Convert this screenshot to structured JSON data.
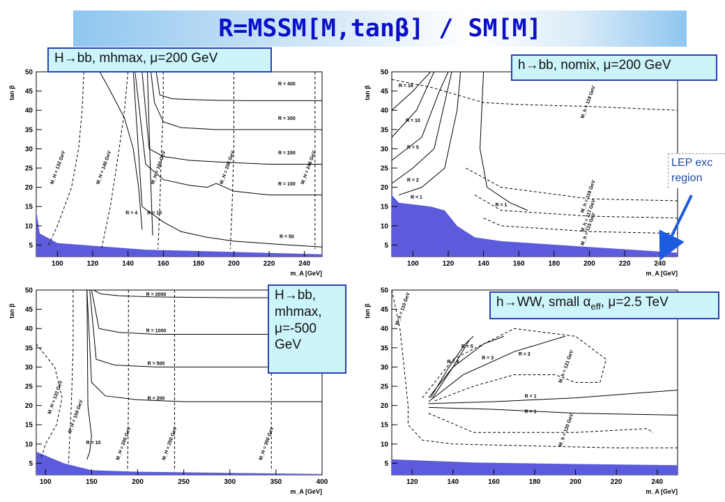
{
  "title": "R=MSSM[M,tanβ] / SM[M]",
  "lep_note": {
    "line1": "LEP exc",
    "line2": "region"
  },
  "chart_data": [
    {
      "type": "line",
      "label": "H→bb, mhmax, μ=200 GeV",
      "xlabel": "m_A [GeV]",
      "ylabel": "tan β",
      "xlim": [
        88,
        250
      ],
      "ylim": [
        2,
        50
      ],
      "xticks": [
        100,
        120,
        140,
        160,
        180,
        200,
        220,
        240
      ],
      "yticks": [
        5,
        10,
        15,
        20,
        25,
        30,
        35,
        40,
        45,
        50
      ],
      "excluded_region": [
        [
          88,
          14
        ],
        [
          90,
          8
        ],
        [
          100,
          5.5
        ],
        [
          150,
          3.8
        ],
        [
          200,
          3.2
        ],
        [
          250,
          2.6
        ],
        [
          250,
          2
        ],
        [
          88,
          2
        ]
      ],
      "solid_contours": [
        {
          "label": "R = 400",
          "x": [
            156,
            158,
            165,
            175,
            190,
            210,
            250
          ],
          "y": [
            50,
            44,
            43,
            42.8,
            42.6,
            42.5,
            42.5
          ],
          "lx": 230,
          "ly": 46.5
        },
        {
          "label": "R = 300",
          "x": [
            153,
            155,
            160,
            170,
            190,
            210,
            250
          ],
          "y": [
            50,
            42,
            37,
            35.5,
            35,
            35,
            35
          ],
          "lx": 230,
          "ly": 37.5
        },
        {
          "label": "R = 200",
          "x": [
            148,
            152,
            160,
            175,
            195,
            220,
            250
          ],
          "y": [
            50,
            30,
            28,
            27,
            26.5,
            26,
            26
          ],
          "lx": 230,
          "ly": 28.5
        },
        {
          "label": "R = 100",
          "x": [
            144,
            150,
            160,
            175,
            185,
            190,
            200,
            220,
            250
          ],
          "y": [
            50,
            26,
            22,
            20.5,
            20,
            21,
            19,
            18,
            18
          ],
          "lx": 230,
          "ly": 20.5
        },
        {
          "label": "R = 50",
          "x": [
            143,
            148,
            160,
            170,
            185,
            200,
            225,
            250
          ],
          "y": [
            50,
            15,
            11,
            8.5,
            7,
            6,
            5.2,
            4.5
          ],
          "lx": 230,
          "ly": 6.8
        },
        {
          "label": "R = 10",
          "x": [
            151,
            152,
            153,
            154
          ],
          "y": [
            50,
            35,
            20,
            7.5
          ],
          "lx": 155,
          "ly": 13
        },
        {
          "label": "R = 4",
          "x": [
            124,
            130,
            138,
            143,
            146,
            148
          ],
          "y": [
            50,
            45,
            38,
            30,
            20,
            9
          ],
          "lx": 142,
          "ly": 13
        }
      ],
      "dashed_contours": [
        {
          "label": "M_H = 132 GeV",
          "x": [
            115,
            114,
            112,
            108,
            100,
            95
          ],
          "y": [
            50,
            40,
            30,
            20,
            10,
            5
          ],
          "lx": 101,
          "ly": 25
        },
        {
          "label": "M_H = 140 GeV",
          "x": [
            140,
            138,
            135,
            130,
            125
          ],
          "y": [
            50,
            40,
            30,
            15,
            4
          ],
          "lx": 127,
          "ly": 25
        },
        {
          "label": "M_H = 160 GeV",
          "x": [
            160,
            160,
            159,
            158,
            157
          ],
          "y": [
            50,
            40,
            30,
            15,
            4
          ],
          "lx": 158,
          "ly": 25
        },
        {
          "label": "M_H = 200 GeV",
          "x": [
            200,
            200,
            200,
            199,
            198
          ],
          "y": [
            50,
            40,
            30,
            15,
            4
          ],
          "lx": 197,
          "ly": 25
        },
        {
          "label": "M_H = 246 GeV",
          "x": [
            246,
            246,
            246,
            246
          ],
          "y": [
            50,
            40,
            20,
            4
          ],
          "lx": 243,
          "ly": 25
        }
      ]
    },
    {
      "type": "line",
      "label": "h→bb, nomix, μ=200 GeV",
      "xlabel": "m_A [GeV]",
      "ylabel": "tan β",
      "xlim": [
        88,
        250
      ],
      "ylim": [
        2,
        50
      ],
      "xticks": [
        100,
        120,
        140,
        160,
        180,
        200,
        220,
        240
      ],
      "yticks": [
        5,
        10,
        15,
        20,
        25,
        30,
        35,
        40,
        45,
        50
      ],
      "excluded_region": [
        [
          88,
          18
        ],
        [
          92,
          16
        ],
        [
          110,
          15
        ],
        [
          118,
          14
        ],
        [
          125,
          10
        ],
        [
          135,
          7
        ],
        [
          150,
          6
        ],
        [
          200,
          4.5
        ],
        [
          250,
          3
        ],
        [
          250,
          2
        ],
        [
          88,
          2
        ]
      ],
      "solid_contours": [
        {
          "label": "R = 16",
          "x": [
            88,
            100,
            110,
            115
          ],
          "y": [
            40,
            45,
            50,
            50
          ],
          "lx": 96,
          "ly": 46
        },
        {
          "label": "R = 10",
          "x": [
            88,
            102,
            112,
            118
          ],
          "y": [
            33,
            40,
            50,
            50
          ],
          "lx": 100,
          "ly": 37
        },
        {
          "label": "R = 5",
          "x": [
            88,
            105,
            115,
            120
          ],
          "y": [
            27,
            33,
            45,
            50
          ],
          "lx": 100,
          "ly": 30
        },
        {
          "label": "R = 2",
          "x": [
            88,
            100,
            112,
            122
          ],
          "y": [
            21,
            25,
            30,
            50
          ],
          "lx": 100,
          "ly": 21.5
        },
        {
          "label": "R = 1",
          "x": [
            92,
            105,
            118,
            125,
            127
          ],
          "y": [
            18,
            20,
            25,
            40,
            50
          ],
          "lx": 102,
          "ly": 17
        },
        {
          "label": "R = 1",
          "x": [
            140,
            138,
            142,
            155,
            165
          ],
          "y": [
            50,
            30,
            20,
            16,
            14
          ],
          "lx": 150,
          "ly": 15
        }
      ],
      "dashed_contours": [
        {
          "label": "M_h = 119 GeV",
          "x": [
            88,
            110,
            125,
            140,
            160,
            200,
            225,
            250
          ],
          "y": [
            48,
            46,
            44,
            42,
            41.5,
            41,
            40.5,
            40
          ],
          "lx": 200,
          "ly": 42
        },
        {
          "label": "M_h = 118 GeV",
          "x": [
            130,
            150,
            200,
            250
          ],
          "y": [
            25,
            20,
            17,
            16.5
          ],
          "lx": 200,
          "ly": 17.5
        },
        {
          "label": "M_h = 117 GeV",
          "x": [
            135,
            150,
            200,
            250
          ],
          "y": [
            18,
            14,
            12.5,
            12
          ],
          "lx": 200,
          "ly": 12.5
        },
        {
          "label": "M_h = 115 GeV",
          "x": [
            140,
            150,
            200,
            250
          ],
          "y": [
            12,
            10,
            8.5,
            8
          ],
          "lx": 200,
          "ly": 9
        }
      ]
    },
    {
      "type": "line",
      "label": "H→bb, mhmax, μ=-500 GeV",
      "xlabel": "m_A [GeV]",
      "ylabel": "tan β",
      "xlim": [
        90,
        400
      ],
      "ylim": [
        2,
        50
      ],
      "xticks": [
        100,
        150,
        200,
        250,
        300,
        350,
        400
      ],
      "yticks": [
        5,
        10,
        15,
        20,
        25,
        30,
        35,
        40,
        45,
        50
      ],
      "excluded_region": [
        [
          90,
          8
        ],
        [
          120,
          5
        ],
        [
          150,
          3.2
        ],
        [
          200,
          2.8
        ],
        [
          300,
          2.5
        ],
        [
          400,
          2.2
        ],
        [
          400,
          2
        ],
        [
          90,
          2
        ]
      ],
      "solid_contours": [
        {
          "label": "R = 2000",
          "x": [
            152,
            160,
            180,
            220,
            300,
            400
          ],
          "y": [
            50,
            49,
            48.5,
            48.2,
            48,
            48
          ],
          "lx": 220,
          "ly": 48.5
        },
        {
          "label": "R = 1000",
          "x": [
            150,
            158,
            180,
            220,
            300,
            400
          ],
          "y": [
            50,
            40,
            39,
            38.5,
            38.5,
            38.5
          ],
          "lx": 220,
          "ly": 39
        },
        {
          "label": "R = 500",
          "x": [
            148,
            155,
            175,
            220,
            300,
            400
          ],
          "y": [
            50,
            32,
            30.5,
            30,
            30,
            30
          ],
          "lx": 220,
          "ly": 30.5
        },
        {
          "label": "R = 200",
          "x": [
            145,
            150,
            165,
            200,
            250,
            300,
            400
          ],
          "y": [
            50,
            26,
            22.5,
            21.5,
            21,
            21,
            21
          ],
          "lx": 220,
          "ly": 21.5
        },
        {
          "label": "R = 10",
          "x": [
            145,
            146,
            150,
            148,
            145
          ],
          "y": [
            50,
            20,
            12,
            8,
            6
          ],
          "lx": 152,
          "ly": 10
        }
      ],
      "dashed_contours": [
        {
          "label": "M_H = 132 GeV",
          "x": [
            90,
            110,
            118,
            112,
            100,
            95
          ],
          "y": [
            36,
            30,
            22,
            15,
            10,
            6
          ],
          "lx": 112,
          "ly": 22
        },
        {
          "label": "M_H = 150 GeV",
          "x": [
            130,
            130,
            128,
            125
          ],
          "y": [
            50,
            35,
            20,
            5
          ],
          "lx": 134,
          "ly": 17
        },
        {
          "label": "M_H = 200 GeV",
          "x": [
            190,
            190,
            190,
            189
          ],
          "y": [
            50,
            35,
            20,
            3
          ],
          "lx": 186,
          "ly": 10
        },
        {
          "label": "M_H = 250 GeV",
          "x": [
            240,
            240,
            240,
            240
          ],
          "y": [
            50,
            35,
            20,
            3
          ],
          "lx": 236,
          "ly": 10
        },
        {
          "label": "M_H = 350 GeV",
          "x": [
            345,
            345,
            345,
            345
          ],
          "y": [
            50,
            35,
            20,
            3
          ],
          "lx": 341,
          "ly": 10
        }
      ]
    },
    {
      "type": "line",
      "label": "h→WW, small α_eff, μ=2.5 TeV",
      "xlabel": "m_A [GeV]",
      "ylabel": "tan β",
      "xlim": [
        110,
        250
      ],
      "ylim": [
        2,
        50
      ],
      "xticks": [
        120,
        140,
        160,
        180,
        200,
        220,
        240
      ],
      "yticks": [
        5,
        10,
        15,
        20,
        25,
        30,
        35,
        40,
        45,
        50
      ],
      "excluded_region": [
        [
          110,
          6
        ],
        [
          150,
          5.2
        ],
        [
          200,
          4.8
        ],
        [
          250,
          4.5
        ],
        [
          250,
          2
        ],
        [
          110,
          2
        ]
      ],
      "solid_contours": [
        {
          "label": "R = 1",
          "x": [
            128,
            160,
            200,
            250
          ],
          "y": [
            20.5,
            21,
            22,
            24
          ],
          "lx": 178,
          "ly": 22
        },
        {
          "label": "R = 1",
          "x": [
            128,
            160,
            200,
            250
          ],
          "y": [
            19.5,
            19,
            18,
            17.5
          ],
          "lx": 178,
          "ly": 18
        },
        {
          "label": "R = 2",
          "x": [
            128,
            145,
            170,
            195
          ],
          "y": [
            21,
            28,
            34,
            38
          ],
          "lx": 175,
          "ly": 33
        },
        {
          "label": "R = 3",
          "x": [
            128,
            140,
            155,
            165
          ],
          "y": [
            22,
            30,
            36,
            38
          ],
          "lx": 157,
          "ly": 32
        },
        {
          "label": "R = 4",
          "x": [
            129,
            138,
            146,
            150
          ],
          "y": [
            22,
            30,
            36,
            38
          ],
          "lx": 140,
          "ly": 31
        },
        {
          "label": "R = 5",
          "x": [
            130,
            140,
            148
          ],
          "y": [
            22,
            30,
            37
          ],
          "lx": 147,
          "ly": 35
        }
      ],
      "dashed_contours": [
        {
          "label": "M_h = 110 GeV",
          "x": [
            110,
            114,
            116,
            118,
            118,
            125,
            140,
            180,
            220,
            250
          ],
          "y": [
            50,
            40,
            30,
            20,
            15,
            11,
            10,
            9.5,
            9,
            9
          ],
          "lx": 116,
          "ly": 45
        },
        {
          "label": "M_h = 121 GeV",
          "x": [
            125,
            140,
            170,
            200,
            215,
            212,
            200,
            190,
            170,
            150,
            130
          ],
          "y": [
            22,
            32,
            40,
            38,
            32,
            26,
            26,
            28,
            28,
            25,
            21
          ],
          "lx": 196,
          "ly": 30
        },
        {
          "label": "M_h = 120 GeV",
          "x": [
            128,
            150,
            200,
            235,
            238
          ],
          "y": [
            18,
            13,
            13,
            14,
            13
          ],
          "lx": 196,
          "ly": 13.5
        }
      ]
    }
  ],
  "boxes": [
    "H→bb, mhmax, μ=200 GeV",
    "h→bb, nomix, μ=200 GeV",
    "H→bb,",
    "mhmax,",
    "μ=-500",
    "GeV",
    "h→WW, small α",
    "eff",
    ", μ=2.5 TeV"
  ],
  "colors": {
    "excluded": "#5b5bdb",
    "title": "#0a10c8",
    "box_fill": "#ccf4fb",
    "box_border": "#2a3fb0",
    "arrow": "#1c5ae0"
  }
}
